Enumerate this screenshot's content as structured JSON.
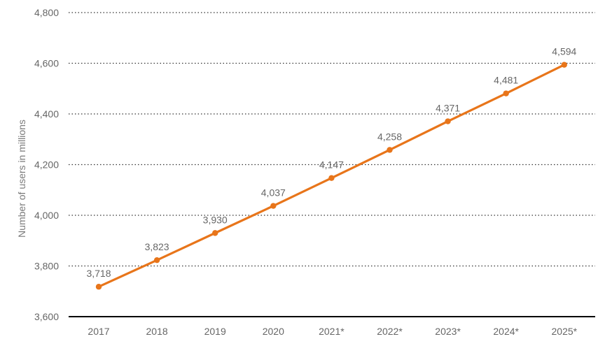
{
  "chart_data": {
    "type": "line",
    "title": "",
    "xlabel": "",
    "ylabel": "Number of users in millions",
    "categories": [
      "2017",
      "2018",
      "2019",
      "2020",
      "2021*",
      "2022*",
      "2023*",
      "2024*",
      "2025*"
    ],
    "series": [
      {
        "values": [
          3718,
          3823,
          3930,
          4037,
          4147,
          4258,
          4371,
          4481,
          4594
        ],
        "labels": [
          "3,718",
          "3,823",
          "3,930",
          "4,037",
          "4,147",
          "4,258",
          "4,371",
          "4,481",
          "4,594"
        ],
        "color": "#e8751a"
      }
    ],
    "ylim": [
      3600,
      4800
    ],
    "yticks": [
      3600,
      3800,
      4000,
      4200,
      4400,
      4600,
      4800
    ],
    "ytick_labels": [
      "3,600",
      "3,800",
      "4,000",
      "4,200",
      "4,400",
      "4,600",
      "4,800"
    ],
    "grid": true,
    "grid_style": "dotted",
    "legend": "none"
  }
}
